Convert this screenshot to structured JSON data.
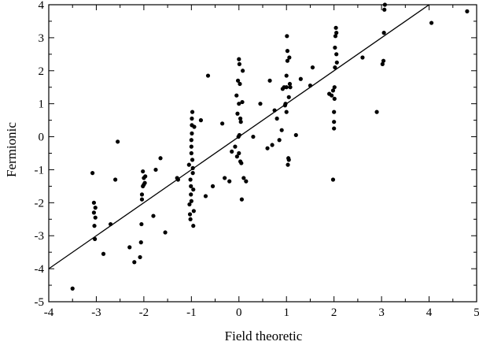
{
  "chart_data": {
    "type": "scatter",
    "xlabel": "Field theoretic",
    "ylabel": "Fermionic",
    "xlim": [
      -4,
      5
    ],
    "ylim": [
      -5,
      4
    ],
    "x_ticks": [
      -4,
      -3,
      -2,
      -1,
      0,
      1,
      2,
      3,
      4,
      5
    ],
    "y_ticks": [
      -5,
      -4,
      -3,
      -2,
      -1,
      0,
      1,
      2,
      3,
      4
    ],
    "grid": false,
    "fit_line": {
      "x": [
        -4,
        4.1
      ],
      "y": [
        -4,
        4.1
      ]
    },
    "points": {
      "x": [
        -3.5,
        -3.08,
        -3.05,
        -3.05,
        -3.02,
        -3.04,
        -3.03,
        -3.02,
        -2.85,
        -2.7,
        -2.6,
        -2.55,
        -2.3,
        -2.2,
        -2.08,
        -2.06,
        -2.05,
        -2.04,
        -2.04,
        -2.02,
        -2.02,
        -2.0,
        -2.0,
        -1.98,
        -1.97,
        -1.8,
        -1.75,
        -1.65,
        -1.55,
        -1.3,
        -1.28,
        -1.05,
        -1.04,
        -1.03,
        -1.02,
        -1.02,
        -1.01,
        -1.01,
        -1.0,
        -1.0,
        -1.0,
        -1.0,
        -0.99,
        -0.99,
        -0.99,
        -0.98,
        -0.98,
        -0.97,
        -0.97,
        -0.96,
        -0.96,
        -0.95,
        -0.94,
        -0.8,
        -0.7,
        -0.65,
        -0.55,
        -0.35,
        -0.3,
        -0.2,
        -0.15,
        -0.08,
        -0.05,
        -0.04,
        -0.03,
        -0.02,
        -0.01,
        0.0,
        0.0,
        0.0,
        0.01,
        0.01,
        0.02,
        0.03,
        0.03,
        0.04,
        0.05,
        0.06,
        0.07,
        0.08,
        0.1,
        0.15,
        0.3,
        0.45,
        0.6,
        0.65,
        0.7,
        0.75,
        0.8,
        0.85,
        0.9,
        0.92,
        0.95,
        0.97,
        0.98,
        1.0,
        1.0,
        1.0,
        1.01,
        1.02,
        1.02,
        1.03,
        1.04,
        1.05,
        1.05,
        1.06,
        1.07,
        1.08,
        1.2,
        1.3,
        1.5,
        1.55,
        1.9,
        1.95,
        1.98,
        1.98,
        2.0,
        2.0,
        2.0,
        2.01,
        2.01,
        2.02,
        2.02,
        2.03,
        2.04,
        2.05,
        2.05,
        2.06,
        2.6,
        2.9,
        3.02,
        3.04,
        3.05,
        3.06,
        3.07,
        4.05,
        4.8
      ],
      "y": [
        -4.6,
        -1.1,
        -2.0,
        -2.3,
        -2.45,
        -2.7,
        -3.1,
        -2.15,
        -3.55,
        -2.65,
        -1.3,
        -0.15,
        -3.35,
        -3.8,
        -3.65,
        -3.2,
        -2.65,
        -1.9,
        -1.75,
        -1.5,
        -1.05,
        -1.25,
        -1.45,
        -1.4,
        -1.2,
        -2.4,
        -1.0,
        -0.65,
        -2.9,
        -1.25,
        -1.3,
        -0.85,
        -2.05,
        -2.35,
        -2.5,
        -1.3,
        -1.5,
        -1.75,
        -1.95,
        -0.5,
        -0.3,
        -0.1,
        0.1,
        0.35,
        0.55,
        0.75,
        -0.7,
        -0.95,
        -1.1,
        -1.6,
        -2.7,
        -2.25,
        0.3,
        0.5,
        -1.8,
        1.85,
        -1.5,
        0.4,
        -1.25,
        -1.35,
        -0.45,
        -0.3,
        1.25,
        -0.6,
        0.7,
        1.7,
        0.0,
        2.35,
        1.0,
        -0.5,
        0.05,
        2.2,
        1.6,
        -0.75,
        0.55,
        0.45,
        -0.8,
        -1.9,
        1.05,
        2.0,
        -1.25,
        -1.35,
        0.0,
        1.0,
        -0.35,
        1.7,
        -0.25,
        0.8,
        0.55,
        -0.1,
        0.2,
        1.45,
        1.5,
        0.95,
        1.0,
        1.85,
        1.5,
        0.75,
        3.05,
        2.6,
        2.3,
        -0.85,
        -0.65,
        -0.7,
        1.2,
        2.4,
        1.6,
        1.5,
        0.05,
        1.75,
        1.55,
        2.1,
        1.3,
        1.25,
        -1.3,
        1.4,
        0.75,
        0.45,
        0.25,
        1.15,
        1.5,
        2.1,
        2.7,
        3.05,
        3.3,
        3.15,
        2.5,
        2.25,
        2.4,
        0.75,
        2.2,
        2.3,
        3.15,
        3.85,
        4.0,
        3.45,
        3.8
      ]
    }
  }
}
